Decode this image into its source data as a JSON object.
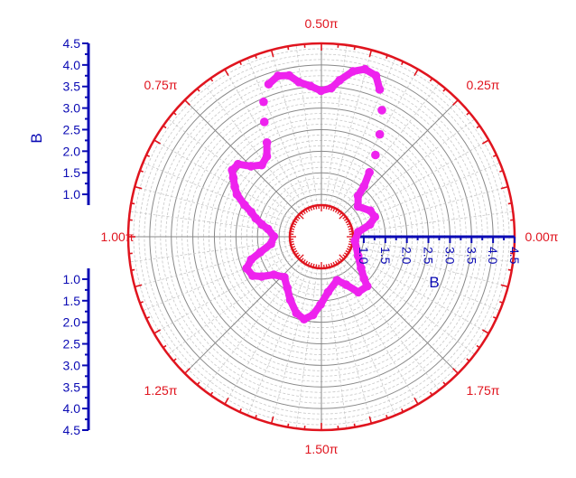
{
  "chart_data": {
    "type": "scatter",
    "polar": true,
    "theta_unit": "pi",
    "r_range": [
      0.75,
      4.5
    ],
    "theta_range": [
      0,
      2
    ],
    "grid": true,
    "radial_axis_title": "B",
    "radial_tick_labels": [
      "1.0",
      "1.5",
      "2.0",
      "2.5",
      "3.0",
      "3.5",
      "4.0",
      "4.5"
    ],
    "radial_ticks": [
      1.0,
      1.5,
      2.0,
      2.5,
      3.0,
      3.5,
      4.0,
      4.5
    ],
    "angular_ticks": [
      0,
      0.25,
      0.5,
      0.75,
      1.0,
      1.25,
      1.5,
      1.75
    ],
    "angular_tick_labels": [
      "0.00π",
      "0.25π",
      "0.50π",
      "0.75π",
      "1.00π",
      "1.25π",
      "1.50π",
      "1.75π"
    ],
    "colors": {
      "series": "#ee22ee",
      "angular_axis": "#e0141e",
      "radial_axis": "#0a0ab4",
      "grid": "#888888"
    },
    "series": [
      {
        "theta": [
          0.041,
          0.079,
          0.113,
          0.156,
          0.22,
          0.267,
          0.277,
          0.296,
          0.314,
          0.335,
          0.358,
          0.38,
          0.396,
          0.419,
          0.44,
          0.463,
          0.479,
          0.501,
          0.523,
          0.546,
          0.563,
          0.584,
          0.606,
          0.629,
          0.647,
          0.667,
          0.69,
          0.721,
          0.75,
          0.772,
          0.796,
          0.812,
          0.833,
          0.852,
          0.875,
          0.893,
          0.913,
          0.935,
          0.954,
          0.998,
          1.045,
          1.079,
          1.1,
          1.127,
          1.164,
          1.187,
          1.214,
          1.264,
          1.312,
          1.354,
          1.399,
          1.434,
          1.466,
          1.496,
          1.538,
          1.61,
          1.652,
          1.687,
          1.738,
          1.753,
          1.787,
          1.847,
          1.961
        ],
        "r": [
          0.88,
          1.18,
          1.34,
          1.3,
          1.12,
          1.29,
          1.55,
          1.88,
          2.29,
          2.75,
          3.27,
          3.69,
          3.96,
          4.03,
          3.92,
          3.67,
          3.47,
          3.4,
          3.52,
          3.64,
          3.83,
          3.88,
          3.76,
          3.42,
          2.99,
          2.54,
          2.27,
          2.18,
          2.33,
          2.58,
          2.6,
          2.48,
          2.34,
          2.21,
          1.95,
          1.74,
          1.6,
          1.43,
          1.27,
          1.12,
          1.2,
          1.48,
          1.73,
          1.9,
          1.85,
          1.68,
          1.43,
          1.29,
          1.44,
          1.65,
          1.88,
          1.97,
          1.84,
          1.59,
          1.31,
          1.09,
          1.27,
          1.56,
          1.58,
          1.4,
          1.19,
          0.98,
          0.8
        ]
      }
    ]
  }
}
